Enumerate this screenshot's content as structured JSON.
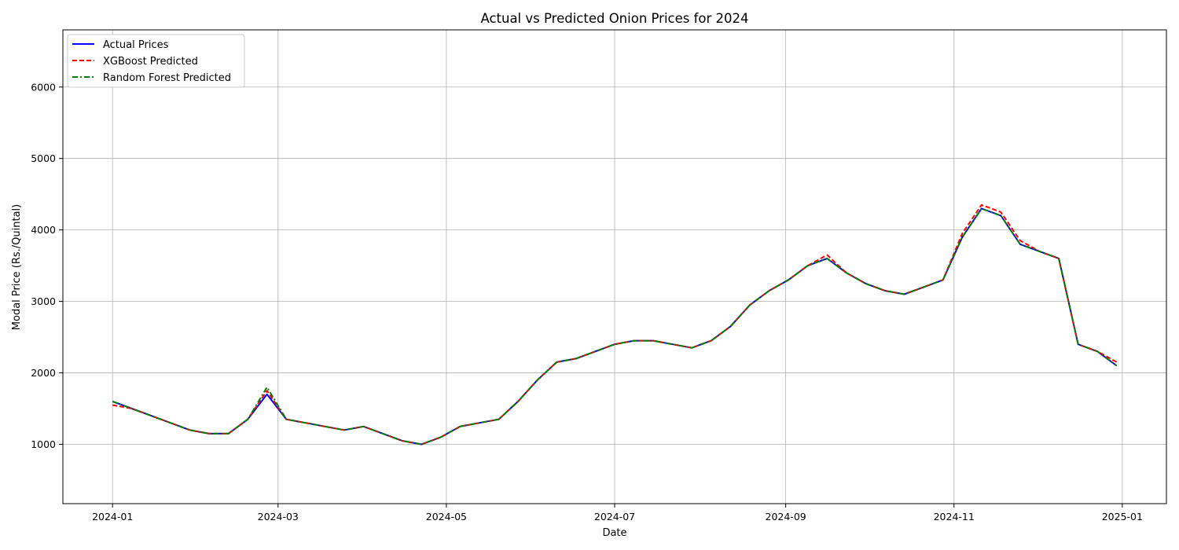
{
  "chart_data": {
    "type": "line",
    "title": "Actual vs Predicted Onion Prices for 2024",
    "xlabel": "Date",
    "ylabel": "Modal Price (Rs./Quintal)",
    "x_type": "date",
    "xlim": [
      "2023-12-14",
      "2025-01-17"
    ],
    "ylim": [
      170,
      6800
    ],
    "x_ticks": [
      "2024-01",
      "2024-03",
      "2024-05",
      "2024-07",
      "2024-09",
      "2024-11",
      "2025-01"
    ],
    "y_ticks": [
      1000,
      2000,
      3000,
      4000,
      5000,
      6000
    ],
    "grid": true,
    "legend_position": "top-left",
    "x": [
      "2024-01-01",
      "2024-01-08",
      "2024-01-15",
      "2024-01-22",
      "2024-01-29",
      "2024-02-05",
      "2024-02-12",
      "2024-02-19",
      "2024-02-26",
      "2024-03-04",
      "2024-03-11",
      "2024-03-18",
      "2024-03-25",
      "2024-04-01",
      "2024-04-08",
      "2024-04-15",
      "2024-04-22",
      "2024-04-29",
      "2024-05-06",
      "2024-05-13",
      "2024-05-20",
      "2024-05-27",
      "2024-06-03",
      "2024-06-10",
      "2024-06-17",
      "2024-06-24",
      "2024-07-01",
      "2024-07-08",
      "2024-07-15",
      "2024-07-22",
      "2024-07-29",
      "2024-08-05",
      "2024-08-12",
      "2024-08-19",
      "2024-08-26",
      "2024-09-02",
      "2024-09-09",
      "2024-09-16",
      "2024-09-23",
      "2024-09-30",
      "2024-10-07",
      "2024-10-14",
      "2024-10-21",
      "2024-10-28",
      "2024-11-04",
      "2024-11-11",
      "2024-11-18",
      "2024-11-25",
      "2024-12-02",
      "2024-12-09",
      "2024-12-16",
      "2024-12-23",
      "2024-12-30"
    ],
    "series": [
      {
        "name": "Actual Prices",
        "color": "#0000ff",
        "style": "solid",
        "values": [
          1600,
          1500,
          1400,
          1300,
          1200,
          1150,
          1150,
          1350,
          1700,
          1350,
          1300,
          1250,
          1200,
          1250,
          1150,
          1050,
          1000,
          1100,
          1250,
          1300,
          1350,
          1600,
          1900,
          2150,
          2200,
          2300,
          2400,
          2450,
          2450,
          2400,
          2350,
          2450,
          2650,
          2950,
          3150,
          3300,
          3500,
          3600,
          3400,
          3250,
          3150,
          3100,
          3200,
          3300,
          3900,
          4300,
          4200,
          3800,
          3700,
          3600,
          2400,
          2300,
          2100
        ]
      },
      {
        "name": "XGBoost Predicted",
        "color": "#ff0000",
        "style": "dashed",
        "values": [
          1550,
          1500,
          1400,
          1300,
          1200,
          1150,
          1150,
          1350,
          1750,
          1350,
          1300,
          1250,
          1200,
          1250,
          1150,
          1050,
          1000,
          1100,
          1250,
          1300,
          1350,
          1600,
          1900,
          2150,
          2200,
          2300,
          2400,
          2450,
          2450,
          2400,
          2350,
          2450,
          2650,
          2950,
          3150,
          3300,
          3500,
          3650,
          3400,
          3250,
          3150,
          3100,
          3200,
          3300,
          3950,
          4350,
          4250,
          3850,
          3700,
          3600,
          2400,
          2300,
          2150
        ]
      },
      {
        "name": "Random Forest Predicted",
        "color": "#008000",
        "style": "dashdot",
        "values": [
          1600,
          1500,
          1400,
          1300,
          1200,
          1150,
          1150,
          1350,
          1800,
          1350,
          1300,
          1250,
          1200,
          1250,
          1150,
          1050,
          1000,
          1100,
          1250,
          1300,
          1350,
          1600,
          1900,
          2150,
          2200,
          2300,
          2400,
          2450,
          2450,
          2400,
          2350,
          2450,
          2650,
          2950,
          3150,
          3300,
          3500,
          3600,
          3400,
          3250,
          3150,
          3100,
          3200,
          3300,
          3900,
          4300,
          4200,
          3800,
          3700,
          3600,
          2400,
          2300,
          2100
        ]
      }
    ]
  }
}
